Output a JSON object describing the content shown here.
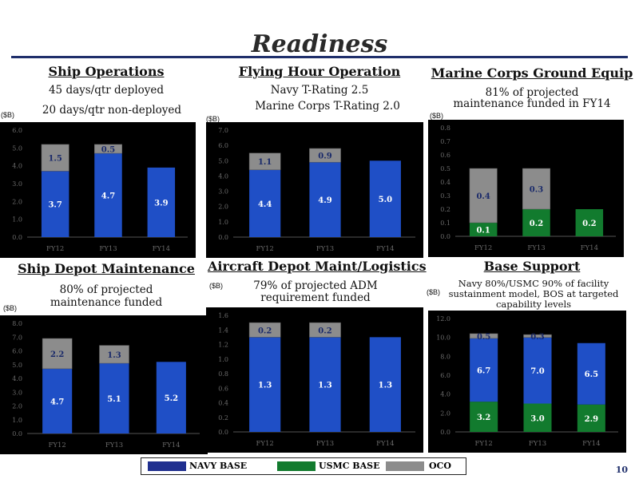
{
  "page_title": "Readiness",
  "page_number": "10",
  "unit_label": "($B)",
  "colors": {
    "navy": "#1f4fc6",
    "usmc": "#127b2e",
    "oco": "#8c8c8c"
  },
  "legend": [
    {
      "label": "NAVY BASE",
      "color": "#1f2f8f"
    },
    {
      "label": "USMC BASE",
      "color": "#127b2e"
    },
    {
      "label": "OCO",
      "color": "#8c8c8c"
    }
  ],
  "sections": [
    {
      "title": "Ship Operations",
      "subtitle_lines": [
        "45 days/qtr deployed",
        "20 days/qtr non-deployed"
      ]
    },
    {
      "title": "Flying Hour Operation",
      "subtitle_lines": [
        "Navy T-Rating 2.5",
        "Marine Corps T-Rating 2.0"
      ]
    },
    {
      "title": "Marine Corps Ground Equip",
      "subtitle_lines": [
        "81% of projected",
        "maintenance funded in  FY14"
      ]
    },
    {
      "title": "Ship Depot Maintenance",
      "subtitle_lines": [
        "80% of projected",
        "maintenance funded"
      ]
    },
    {
      "title": "Aircraft Depot Maint/Logistics",
      "subtitle_lines": [
        "79% of projected ADM",
        "requirement funded"
      ]
    },
    {
      "title": "Base Support",
      "subtitle_lines": [
        "Navy 80%/USMC 90% of facility",
        "sustainment model, BOS at targeted",
        "capability levels"
      ]
    }
  ],
  "chart_data": [
    {
      "type": "bar",
      "stacked": true,
      "categories": [
        "FY12",
        "FY13",
        "FY14"
      ],
      "ylim": [
        0,
        6.0
      ],
      "ticks": [
        "0.0",
        "1.0",
        "2.0",
        "3.0",
        "4.0",
        "5.0",
        "6.0"
      ],
      "series": [
        {
          "key": "navy",
          "values": [
            3.7,
            4.7,
            3.9
          ],
          "labels": [
            "3.7",
            "4.7",
            "3.9"
          ]
        },
        {
          "key": "oco",
          "values": [
            1.5,
            0.5,
            0
          ],
          "labels": [
            "1.5",
            "0.5",
            ""
          ]
        }
      ]
    },
    {
      "type": "bar",
      "stacked": true,
      "categories": [
        "FY12",
        "FY13",
        "FY14"
      ],
      "ylim": [
        0,
        7.0
      ],
      "ticks": [
        "0.0",
        "1.0",
        "2.0",
        "3.0",
        "4.0",
        "5.0",
        "6.0",
        "7.0"
      ],
      "series": [
        {
          "key": "navy",
          "values": [
            4.4,
            4.9,
            5.0
          ],
          "labels": [
            "4.4",
            "4.9",
            "5.0"
          ]
        },
        {
          "key": "oco",
          "values": [
            1.1,
            0.9,
            0
          ],
          "labels": [
            "1.1",
            "0.9",
            ""
          ]
        }
      ]
    },
    {
      "type": "bar",
      "stacked": true,
      "categories": [
        "FY12",
        "FY13",
        "FY14"
      ],
      "ylim": [
        0,
        0.8
      ],
      "ticks": [
        "0.0",
        "0.1",
        "0.2",
        "0.3",
        "0.4",
        "0.5",
        "0.6",
        "0.7",
        "0.8"
      ],
      "series": [
        {
          "key": "usmc",
          "values": [
            0.1,
            0.2,
            0.2
          ],
          "labels": [
            "0.1",
            "0.2",
            "0.2"
          ]
        },
        {
          "key": "oco",
          "values": [
            0.4,
            0.3,
            0
          ],
          "labels": [
            "0.4",
            "0.3",
            ""
          ]
        }
      ]
    },
    {
      "type": "bar",
      "stacked": true,
      "categories": [
        "FY12",
        "FY13",
        "FY14"
      ],
      "ylim": [
        0,
        8.0
      ],
      "ticks": [
        "0.0",
        "1.0",
        "2.0",
        "3.0",
        "4.0",
        "5.0",
        "6.0",
        "7.0",
        "8.0"
      ],
      "series": [
        {
          "key": "navy",
          "values": [
            4.7,
            5.1,
            5.2
          ],
          "labels": [
            "4.7",
            "5.1",
            "5.2"
          ]
        },
        {
          "key": "oco",
          "values": [
            2.2,
            1.3,
            0
          ],
          "labels": [
            "2.2",
            "1.3",
            ""
          ]
        }
      ]
    },
    {
      "type": "bar",
      "stacked": true,
      "categories": [
        "FY12",
        "FY13",
        "FY14"
      ],
      "ylim": [
        0,
        1.6
      ],
      "ticks": [
        "0.0",
        "0.2",
        "0.4",
        "0.6",
        "0.8",
        "1.0",
        "1.2",
        "1.4",
        "1.6"
      ],
      "series": [
        {
          "key": "navy",
          "values": [
            1.3,
            1.3,
            1.3
          ],
          "labels": [
            "1.3",
            "1.3",
            "1.3"
          ]
        },
        {
          "key": "oco",
          "values": [
            0.2,
            0.2,
            0
          ],
          "labels": [
            "0.2",
            "0.2",
            ""
          ]
        }
      ]
    },
    {
      "type": "bar",
      "stacked": true,
      "categories": [
        "FY12",
        "FY13",
        "FY14"
      ],
      "ylim": [
        0,
        12.0
      ],
      "ticks": [
        "0.0",
        "2.0",
        "4.0",
        "6.0",
        "8.0",
        "10.0",
        "12.0"
      ],
      "series": [
        {
          "key": "usmc",
          "values": [
            3.2,
            3.0,
            2.9
          ],
          "labels": [
            "3.2",
            "3.0",
            "2.9"
          ]
        },
        {
          "key": "navy",
          "values": [
            6.7,
            7.0,
            6.5
          ],
          "labels": [
            "6.7",
            "7.0",
            "6.5"
          ]
        },
        {
          "key": "oco",
          "values": [
            0.5,
            0.3,
            0
          ],
          "labels": [
            "0.5",
            "0.3",
            ""
          ]
        }
      ]
    }
  ]
}
